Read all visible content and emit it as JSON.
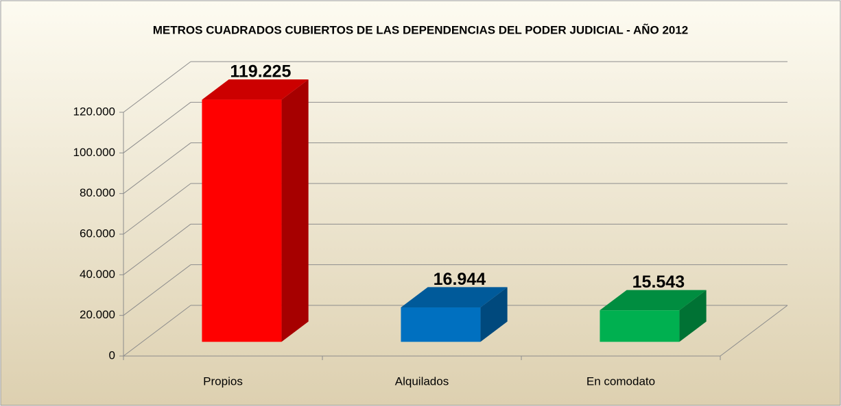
{
  "chart_data": {
    "type": "bar3d",
    "title": "METROS CUADRADOS CUBIERTOS DE LAS DEPENDENCIAS DEL PODER JUDICIAL - AÑO 2012",
    "categories": [
      "Propios",
      "Alquilados",
      "En comodato"
    ],
    "values": [
      119225,
      16944,
      15543
    ],
    "value_labels": [
      "119.225",
      "16.944",
      "15.543"
    ],
    "colors": [
      "#ff0000",
      "#0070c0",
      "#00b050"
    ],
    "ylim": [
      0,
      120000
    ],
    "yticks": [
      0,
      {
        "value": 20000,
        "label": "20.000"
      },
      {
        "value": 40000,
        "label": "40.000"
      },
      {
        "value": 60000,
        "label": "60.000"
      },
      {
        "value": 80000,
        "label": "80.000"
      },
      {
        "value": 100000,
        "label": "100.000"
      },
      {
        "value": 120000,
        "label": "120.000"
      }
    ],
    "grid": true
  }
}
